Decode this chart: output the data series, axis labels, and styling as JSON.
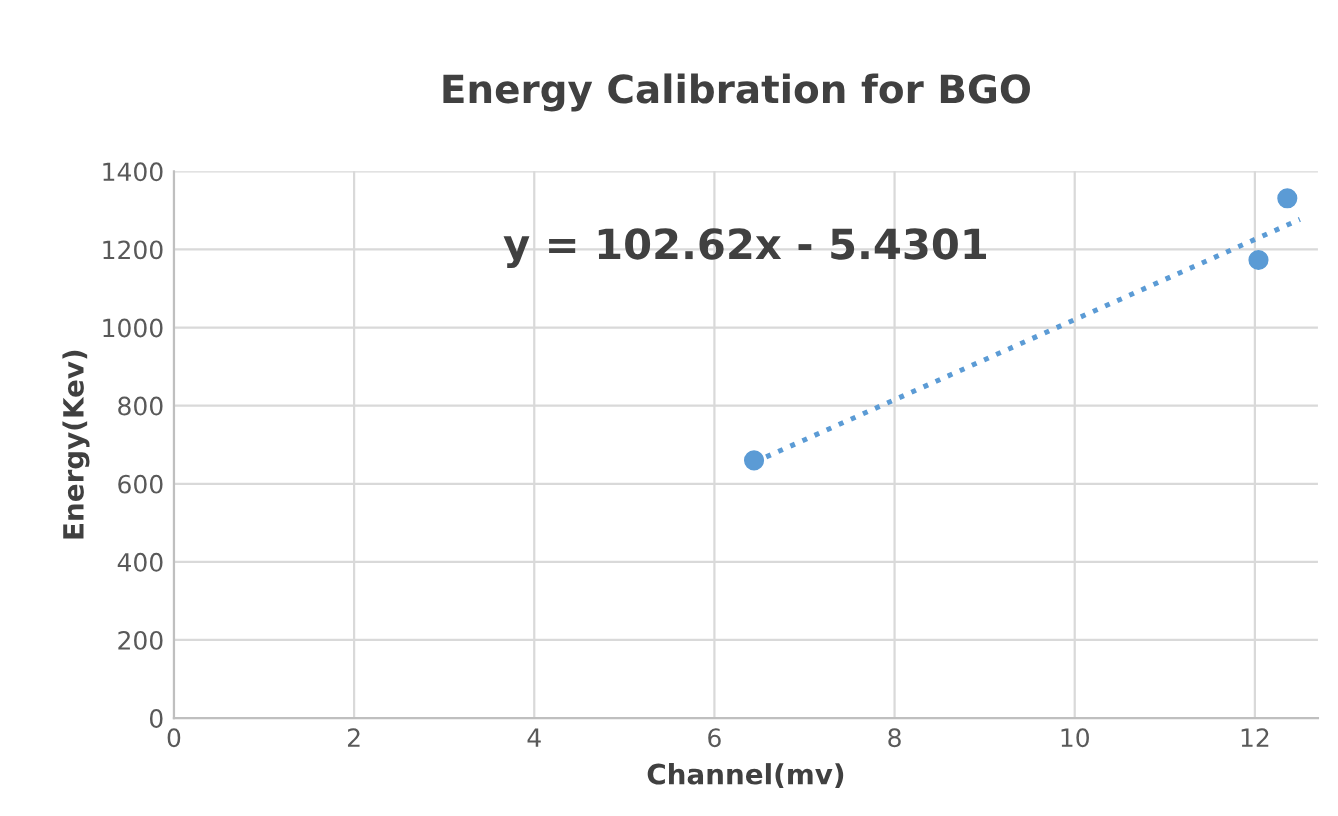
{
  "chart_data": {
    "type": "scatter",
    "title": "Energy Calibration for BGO",
    "xlabel": "Channel(mv)",
    "ylabel": "Energy(Kev)",
    "series": [
      {
        "type": "scatter",
        "color": "#5b9bd5",
        "x": [
          6.44,
          12.04,
          12.36
        ],
        "values": [
          660,
          1173,
          1331
        ],
        "marker": "circle"
      },
      {
        "type": "line",
        "color": "#5b9bd5",
        "x": [
          6.44,
          12.5
        ],
        "values": [
          655,
          1277
        ],
        "line_style": "dotted",
        "marker": "none"
      }
    ],
    "annotations": [
      "y = 102.62x - 5.4301"
    ],
    "xlim": [
      0,
      12.7
    ],
    "xticks": [
      0,
      2,
      4,
      6,
      8,
      10,
      12
    ],
    "ylim": [
      0,
      1400
    ],
    "yticks": [
      0,
      200,
      400,
      600,
      800,
      1000,
      1200,
      1400
    ],
    "grid": true,
    "legend": false
  }
}
